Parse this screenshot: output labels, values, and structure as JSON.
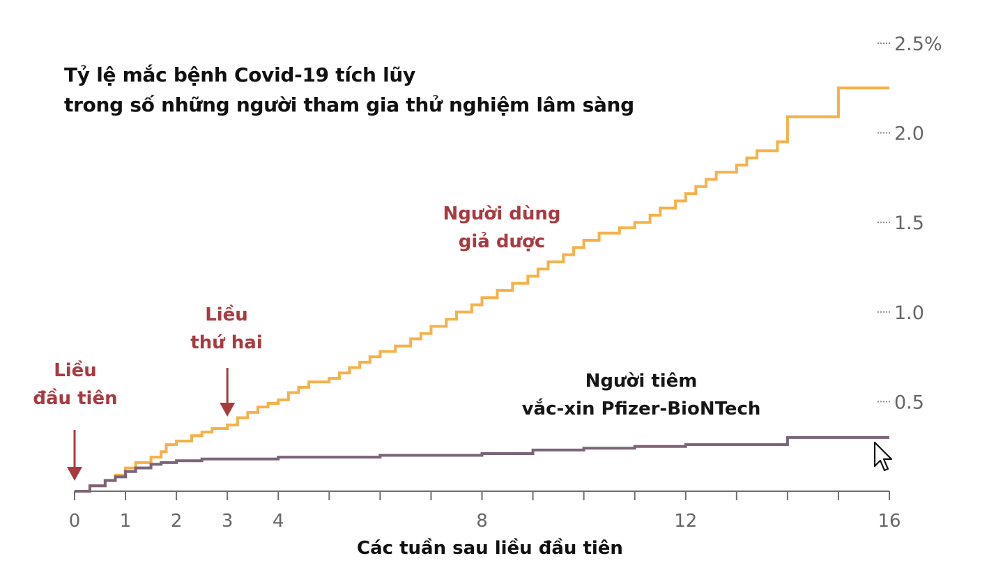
{
  "title_lines": [
    "Tỷ lệ mắc bệnh Covid-19 tích lũy",
    "trong số những người tham gia thử nghiệm lâm sàng"
  ],
  "annotations": {
    "first_dose": [
      "Liều",
      "đầu tiên"
    ],
    "second_dose": [
      "Liều",
      "thứ hai"
    ],
    "placebo": [
      "Người dùng",
      "giả dược"
    ],
    "vaccine": [
      "Người tiêm",
      "vắc-xin Pfizer-BioNTech"
    ]
  },
  "colors": {
    "placebo": "#f5b14a",
    "vaccine": "#7b6478",
    "annotation_red": "#a83a3f",
    "axis": "#6e6e6e"
  },
  "chart_data": {
    "type": "line",
    "step": true,
    "xlabel": "Các tuần sau liều đầu tiên",
    "ylabel": "",
    "xlim": [
      0,
      16
    ],
    "ylim": [
      0,
      2.5
    ],
    "x_ticks": [
      0,
      1,
      2,
      3,
      4,
      8,
      12,
      16
    ],
    "y_ticks": [
      0.5,
      1.0,
      1.5,
      2.0,
      2.5
    ],
    "y_tick_labels": [
      "0.5",
      "1.0",
      "1.5",
      "2.0",
      "2.5%"
    ],
    "x_minor_ticks": [
      0,
      1,
      2,
      3,
      4,
      5,
      6,
      7,
      8,
      9,
      10,
      11,
      12,
      13,
      14,
      15,
      16
    ],
    "series": [
      {
        "name": "Người dùng giả dược",
        "x": [
          0,
          0.3,
          0.6,
          0.8,
          1.0,
          1.2,
          1.5,
          1.7,
          1.8,
          2.0,
          2.3,
          2.5,
          2.7,
          3.0,
          3.2,
          3.4,
          3.6,
          3.8,
          4.0,
          4.2,
          4.4,
          4.6,
          5.0,
          5.2,
          5.4,
          5.6,
          5.8,
          6.0,
          6.3,
          6.6,
          6.8,
          7.0,
          7.3,
          7.5,
          7.8,
          8.0,
          8.3,
          8.6,
          8.9,
          9.1,
          9.3,
          9.6,
          9.8,
          10.0,
          10.3,
          10.7,
          11.0,
          11.3,
          11.5,
          11.8,
          12.0,
          12.2,
          12.4,
          12.6,
          13.0,
          13.2,
          13.4,
          13.8,
          14.0,
          14.5,
          15.0,
          15.4,
          16.0
        ],
        "values": [
          0,
          0.03,
          0.06,
          0.09,
          0.13,
          0.16,
          0.19,
          0.22,
          0.26,
          0.28,
          0.31,
          0.33,
          0.35,
          0.37,
          0.41,
          0.44,
          0.47,
          0.49,
          0.51,
          0.55,
          0.58,
          0.61,
          0.63,
          0.66,
          0.69,
          0.72,
          0.75,
          0.78,
          0.81,
          0.85,
          0.88,
          0.92,
          0.96,
          1.0,
          1.04,
          1.08,
          1.12,
          1.16,
          1.2,
          1.24,
          1.28,
          1.32,
          1.36,
          1.4,
          1.44,
          1.47,
          1.5,
          1.54,
          1.58,
          1.62,
          1.66,
          1.7,
          1.74,
          1.78,
          1.82,
          1.86,
          1.9,
          1.95,
          2.09,
          2.09,
          2.25,
          2.25,
          2.25
        ]
      },
      {
        "name": "Người tiêm vắc-xin Pfizer-BioNTech",
        "x": [
          0,
          0.3,
          0.6,
          0.8,
          1.0,
          1.2,
          1.5,
          1.7,
          2.0,
          2.5,
          3.0,
          4.0,
          5.0,
          6.0,
          7.0,
          8.0,
          9.0,
          10.0,
          11.0,
          12.0,
          13.0,
          14.0,
          15.0,
          16.0
        ],
        "values": [
          0,
          0.03,
          0.06,
          0.08,
          0.11,
          0.13,
          0.15,
          0.16,
          0.17,
          0.18,
          0.18,
          0.19,
          0.19,
          0.2,
          0.2,
          0.21,
          0.23,
          0.24,
          0.25,
          0.26,
          0.26,
          0.3,
          0.3,
          0.3
        ]
      }
    ]
  }
}
